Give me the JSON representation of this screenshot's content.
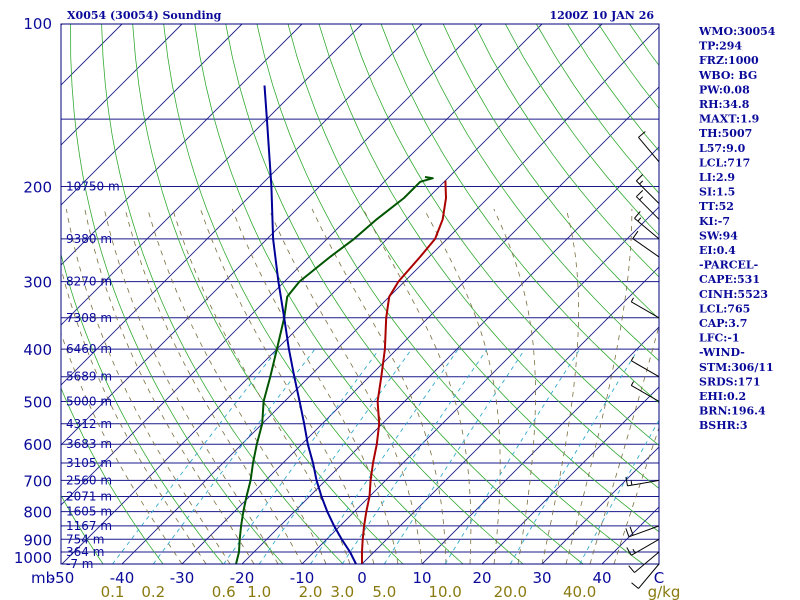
{
  "header": {
    "station": "X0054 (30054) Sounding",
    "valid_time": "1200Z 10 JAN 26"
  },
  "chart_data": {
    "type": "line",
    "title": "X0054 (30054) Sounding",
    "subtitle": "1200Z 10 JAN 26",
    "xlabel_unit": "C",
    "ylabel_unit": "mb",
    "mixing_ratio_unit": "g/kg",
    "xlim": [
      -50,
      50
    ],
    "ylim": [
      1000,
      100
    ],
    "grid": true,
    "pressure_ticks": [
      100,
      200,
      300,
      400,
      500,
      600,
      700,
      800,
      900,
      1000
    ],
    "temperature_ticks": [
      -50,
      -40,
      -30,
      -20,
      -10,
      0,
      10,
      20,
      30,
      40
    ],
    "mixing_ratio_ticks": [
      "0.1",
      "0.2",
      "0.6",
      "1.0",
      "2.0",
      "3.0",
      "5.0",
      "10.0",
      "20.0",
      "40.0"
    ],
    "height_labels": [
      {
        "p": 200,
        "label": "10750 m"
      },
      {
        "p": 250,
        "label": "9380 m"
      },
      {
        "p": 300,
        "label": "8270 m"
      },
      {
        "p": 350,
        "label": "7308 m"
      },
      {
        "p": 400,
        "label": "6460 m"
      },
      {
        "p": 450,
        "label": "5689 m"
      },
      {
        "p": 500,
        "label": "5000 m"
      },
      {
        "p": 550,
        "label": "4312 m"
      },
      {
        "p": 600,
        "label": "3683 m"
      },
      {
        "p": 650,
        "label": "3105 m"
      },
      {
        "p": 700,
        "label": "2560 m"
      },
      {
        "p": 750,
        "label": "2071 m"
      },
      {
        "p": 800,
        "label": "1605 m"
      },
      {
        "p": 850,
        "label": "1167 m"
      },
      {
        "p": 900,
        "label": "754 m"
      },
      {
        "p": 950,
        "label": "364 m"
      },
      {
        "p": 1000,
        "label": "-7 m"
      }
    ],
    "series": [
      {
        "name": "Temperature",
        "color": "#aa0000",
        "points": [
          {
            "p": 1000,
            "t": 0
          },
          {
            "p": 950,
            "t": -2
          },
          {
            "p": 900,
            "t": -4
          },
          {
            "p": 850,
            "t": -6
          },
          {
            "p": 800,
            "t": -8
          },
          {
            "p": 750,
            "t": -10
          },
          {
            "p": 700,
            "t": -12.5
          },
          {
            "p": 650,
            "t": -15
          },
          {
            "p": 600,
            "t": -17.5
          },
          {
            "p": 550,
            "t": -20.5
          },
          {
            "p": 500,
            "t": -24.5
          },
          {
            "p": 450,
            "t": -28
          },
          {
            "p": 400,
            "t": -32
          },
          {
            "p": 350,
            "t": -37
          },
          {
            "p": 320,
            "t": -40
          },
          {
            "p": 300,
            "t": -41
          },
          {
            "p": 270,
            "t": -41.5
          },
          {
            "p": 250,
            "t": -42
          },
          {
            "p": 230,
            "t": -44
          },
          {
            "p": 210,
            "t": -47
          },
          {
            "p": 195,
            "t": -50
          }
        ]
      },
      {
        "name": "Dewpoint",
        "color": "#005500",
        "points": [
          {
            "p": 1000,
            "t": -21
          },
          {
            "p": 950,
            "t": -22.5
          },
          {
            "p": 900,
            "t": -24.5
          },
          {
            "p": 850,
            "t": -26.5
          },
          {
            "p": 800,
            "t": -28.5
          },
          {
            "p": 750,
            "t": -30.5
          },
          {
            "p": 700,
            "t": -32.5
          },
          {
            "p": 650,
            "t": -35
          },
          {
            "p": 600,
            "t": -37.5
          },
          {
            "p": 550,
            "t": -40
          },
          {
            "p": 500,
            "t": -43.5
          },
          {
            "p": 450,
            "t": -46.5
          },
          {
            "p": 400,
            "t": -50
          },
          {
            "p": 350,
            "t": -54
          },
          {
            "p": 320,
            "t": -57
          },
          {
            "p": 300,
            "t": -57.5
          },
          {
            "p": 270,
            "t": -56.5
          },
          {
            "p": 250,
            "t": -55.5
          },
          {
            "p": 230,
            "t": -55
          },
          {
            "p": 210,
            "t": -54
          },
          {
            "p": 196,
            "t": -54
          },
          {
            "p": 193,
            "t": -52.5
          },
          {
            "p": 192,
            "t": -54
          }
        ]
      },
      {
        "name": "Parcel",
        "color": "#000099",
        "points": [
          {
            "p": 1000,
            "t": -1
          },
          {
            "p": 950,
            "t": -4
          },
          {
            "p": 900,
            "t": -7.5
          },
          {
            "p": 850,
            "t": -11
          },
          {
            "p": 800,
            "t": -14.5
          },
          {
            "p": 750,
            "t": -18
          },
          {
            "p": 700,
            "t": -21.5
          },
          {
            "p": 650,
            "t": -25
          },
          {
            "p": 600,
            "t": -29
          },
          {
            "p": 550,
            "t": -33
          },
          {
            "p": 500,
            "t": -37.5
          },
          {
            "p": 450,
            "t": -42.5
          },
          {
            "p": 400,
            "t": -48
          },
          {
            "p": 350,
            "t": -54
          },
          {
            "p": 300,
            "t": -61
          },
          {
            "p": 250,
            "t": -69
          },
          {
            "p": 200,
            "t": -78
          },
          {
            "p": 150,
            "t": -90
          },
          {
            "p": 130,
            "t": -96
          }
        ]
      }
    ],
    "wind_barbs": [
      {
        "p": 180,
        "direction": 320,
        "speed_kt": 10
      },
      {
        "p": 215,
        "direction": 315,
        "speed_kt": 15
      },
      {
        "p": 230,
        "direction": 315,
        "speed_kt": 15
      },
      {
        "p": 250,
        "direction": 310,
        "speed_kt": 15
      },
      {
        "p": 270,
        "direction": 305,
        "speed_kt": 10
      },
      {
        "p": 350,
        "direction": 300,
        "speed_kt": 5
      },
      {
        "p": 450,
        "direction": 300,
        "speed_kt": 5
      },
      {
        "p": 500,
        "direction": 300,
        "speed_kt": 5
      },
      {
        "p": 700,
        "direction": 260,
        "speed_kt": 15
      },
      {
        "p": 850,
        "direction": 250,
        "speed_kt": 20
      },
      {
        "p": 900,
        "direction": 240,
        "speed_kt": 15
      },
      {
        "p": 950,
        "direction": 230,
        "speed_kt": 10
      },
      {
        "p": 1000,
        "direction": 220,
        "speed_kt": 10
      }
    ]
  },
  "indices": [
    "WMO:30054",
    "TP:294",
    "FRZ:1000",
    "WBO: BG",
    "PW:0.08",
    "RH:34.8",
    "MAXT:1.9",
    "TH:5007",
    "L57:9.0",
    "LCL:717",
    "LI:2.9",
    "SI:1.5",
    "TT:52",
    "KI:-7",
    "SW:94",
    "EI:0.4",
    "-PARCEL-",
    "CAPE:531",
    "CINH:5523",
    "LCL:765",
    "CAP:3.7",
    "LFC:-1",
    "-WIND-",
    "STM:306/11",
    "SRDS:171",
    "EHI:0.2",
    "BRN:196.4",
    "BSHR:3"
  ],
  "colors": {
    "frame": "#00007a",
    "temperature_grid": "#1a1a8c",
    "dry_adiabat": "#33aa33",
    "moist_adiabat": "#7a7040",
    "mixing_ratio": "#33aacc",
    "label_blue": "#0a0a9a",
    "label_olive": "#8a7a10"
  }
}
